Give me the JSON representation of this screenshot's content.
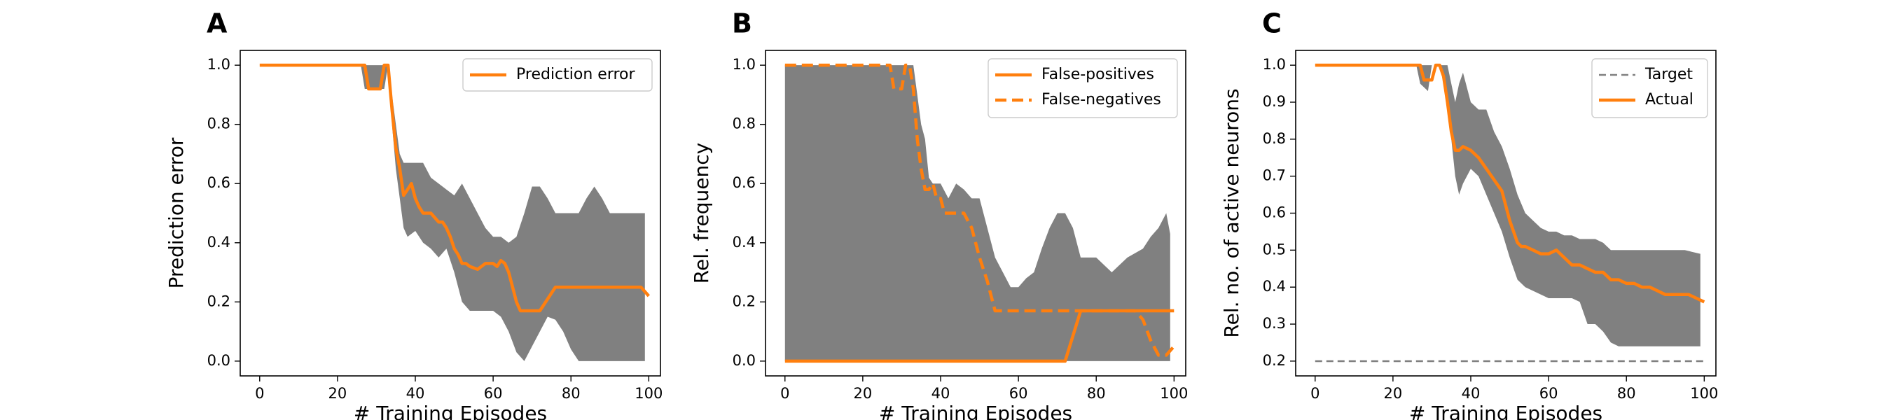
{
  "chart_data": [
    {
      "panel": "A",
      "type": "line",
      "xlabel": "# Training Episodes",
      "ylabel": "Prediction error",
      "xlim": [
        -5,
        103
      ],
      "ylim": [
        -0.05,
        1.05
      ],
      "xticks": [
        0,
        20,
        40,
        60,
        80,
        100
      ],
      "yticks": [
        0.0,
        0.2,
        0.4,
        0.6,
        0.8,
        1.0
      ],
      "ytick_labels": [
        "0.0",
        "0.2",
        "0.4",
        "0.6",
        "0.8",
        "1.0"
      ],
      "legend_position": "top-right",
      "band": {
        "x": [
          0,
          26,
          27,
          32,
          33,
          34,
          35,
          36,
          37,
          38,
          40,
          42,
          44,
          46,
          48,
          50,
          52,
          54,
          56,
          58,
          60,
          62,
          64,
          66,
          68,
          70,
          72,
          74,
          76,
          78,
          80,
          82,
          84,
          86,
          88,
          90,
          92,
          94,
          96,
          98,
          99
        ],
        "upper": [
          1.0,
          1.0,
          1.0,
          1.0,
          1.0,
          0.9,
          0.8,
          0.7,
          0.67,
          0.67,
          0.67,
          0.67,
          0.62,
          0.6,
          0.58,
          0.56,
          0.6,
          0.55,
          0.5,
          0.45,
          0.42,
          0.42,
          0.4,
          0.42,
          0.5,
          0.59,
          0.59,
          0.55,
          0.5,
          0.5,
          0.5,
          0.5,
          0.55,
          0.59,
          0.55,
          0.5,
          0.5,
          0.5,
          0.5,
          0.5,
          0.5
        ],
        "lower": [
          1.0,
          1.0,
          0.92,
          0.92,
          1.0,
          0.8,
          0.65,
          0.55,
          0.45,
          0.42,
          0.44,
          0.4,
          0.38,
          0.35,
          0.38,
          0.3,
          0.2,
          0.17,
          0.17,
          0.17,
          0.17,
          0.15,
          0.1,
          0.03,
          0.0,
          0.05,
          0.1,
          0.15,
          0.14,
          0.1,
          0.04,
          0.0,
          0.0,
          0.0,
          0.0,
          0.0,
          0.0,
          0.0,
          0.0,
          0.0,
          0.0
        ]
      },
      "series": [
        {
          "name": "Prediction error",
          "style": "solid",
          "x": [
            0,
            27,
            28,
            31,
            32,
            33,
            34,
            35,
            36,
            37,
            38,
            39,
            40,
            41,
            42,
            44,
            46,
            47,
            48,
            49,
            50,
            51,
            52,
            53,
            54,
            56,
            58,
            60,
            61,
            62,
            63,
            64,
            65,
            66,
            67,
            68,
            70,
            72,
            74,
            76,
            80,
            85,
            90,
            95,
            98,
            100
          ],
          "y": [
            1.0,
            1.0,
            0.92,
            0.92,
            1.0,
            1.0,
            0.85,
            0.72,
            0.65,
            0.56,
            0.58,
            0.6,
            0.55,
            0.52,
            0.5,
            0.5,
            0.47,
            0.47,
            0.45,
            0.42,
            0.38,
            0.36,
            0.33,
            0.33,
            0.32,
            0.31,
            0.33,
            0.33,
            0.32,
            0.34,
            0.33,
            0.3,
            0.25,
            0.2,
            0.17,
            0.17,
            0.17,
            0.17,
            0.21,
            0.25,
            0.25,
            0.25,
            0.25,
            0.25,
            0.25,
            0.22
          ]
        }
      ]
    },
    {
      "panel": "B",
      "type": "line",
      "xlabel": "# Training Episodes",
      "ylabel": "Rel. frequency",
      "xlim": [
        -5,
        103
      ],
      "ylim": [
        -0.05,
        1.05
      ],
      "xticks": [
        0,
        20,
        40,
        60,
        80,
        100
      ],
      "yticks": [
        0.0,
        0.2,
        0.4,
        0.6,
        0.8,
        1.0
      ],
      "ytick_labels": [
        "0.0",
        "0.2",
        "0.4",
        "0.6",
        "0.8",
        "1.0"
      ],
      "legend_position": "top-right",
      "band": {
        "x": [
          0,
          26,
          27,
          30,
          31,
          32,
          33,
          34,
          35,
          36,
          37,
          38,
          40,
          42,
          44,
          46,
          48,
          50,
          52,
          54,
          56,
          58,
          60,
          62,
          64,
          66,
          68,
          70,
          72,
          74,
          76,
          78,
          80,
          84,
          88,
          92,
          94,
          96,
          98,
          99
        ],
        "upper": [
          1.0,
          1.0,
          1.0,
          1.0,
          1.0,
          1.0,
          1.0,
          0.9,
          0.8,
          0.75,
          0.62,
          0.6,
          0.6,
          0.55,
          0.6,
          0.58,
          0.55,
          0.55,
          0.45,
          0.35,
          0.3,
          0.25,
          0.25,
          0.28,
          0.3,
          0.38,
          0.45,
          0.5,
          0.5,
          0.45,
          0.35,
          0.35,
          0.35,
          0.3,
          0.35,
          0.38,
          0.42,
          0.45,
          0.5,
          0.43
        ],
        "lower": [
          0.0,
          0.0,
          0.0,
          0.0,
          0.0,
          0.0,
          0.0,
          0.0,
          0.0,
          0.0,
          0.0,
          0.0,
          0.0,
          0.0,
          0.0,
          0.0,
          0.0,
          0.0,
          0.0,
          0.0,
          0.0,
          0.0,
          0.0,
          0.0,
          0.0,
          0.0,
          0.0,
          0.0,
          0.0,
          0.0,
          0.0,
          0.0,
          0.0,
          0.0,
          0.0,
          0.0,
          0.0,
          0.0,
          0.0,
          0.0
        ]
      },
      "series": [
        {
          "name": "False-positives",
          "style": "solid",
          "x": [
            0,
            72,
            76,
            100
          ],
          "y": [
            0.0,
            0.0,
            0.17,
            0.17
          ]
        },
        {
          "name": "False-negatives",
          "style": "dashed",
          "x": [
            0,
            27,
            28,
            30,
            31,
            32,
            33,
            34,
            35,
            36,
            37,
            38,
            39,
            40,
            41,
            42,
            44,
            46,
            48,
            50,
            52,
            53,
            54,
            55,
            56,
            58,
            60,
            70,
            80,
            90,
            92,
            94,
            96,
            98,
            100
          ],
          "y": [
            1.0,
            1.0,
            0.92,
            0.92,
            1.0,
            1.0,
            0.92,
            0.75,
            0.65,
            0.58,
            0.58,
            0.6,
            0.55,
            0.55,
            0.5,
            0.5,
            0.5,
            0.5,
            0.45,
            0.35,
            0.27,
            0.22,
            0.17,
            0.17,
            0.17,
            0.17,
            0.17,
            0.17,
            0.17,
            0.17,
            0.14,
            0.07,
            0.02,
            0.02,
            0.05
          ]
        }
      ]
    },
    {
      "panel": "C",
      "type": "line",
      "xlabel": "# Training Episodes",
      "ylabel": "Rel. no. of active neurons",
      "xlim": [
        -5,
        103
      ],
      "ylim": [
        0.16,
        1.04
      ],
      "xticks": [
        0,
        20,
        40,
        60,
        80,
        100
      ],
      "yticks": [
        0.2,
        0.3,
        0.4,
        0.5,
        0.6,
        0.7,
        0.8,
        0.9,
        1.0
      ],
      "ytick_labels": [
        "0.2",
        "0.3",
        "0.4",
        "0.5",
        "0.6",
        "0.7",
        "0.8",
        "0.9",
        "1.0"
      ],
      "legend_position": "top-right",
      "band": {
        "x": [
          0,
          26,
          27,
          29,
          30,
          32,
          33,
          34,
          35,
          36,
          37,
          38,
          40,
          42,
          44,
          46,
          48,
          50,
          52,
          54,
          56,
          58,
          60,
          62,
          64,
          66,
          68,
          70,
          72,
          74,
          76,
          78,
          80,
          85,
          90,
          95,
          99
        ],
        "upper": [
          1.0,
          1.0,
          1.0,
          1.0,
          1.0,
          1.0,
          1.0,
          1.0,
          0.95,
          0.9,
          0.95,
          0.98,
          0.9,
          0.88,
          0.88,
          0.82,
          0.78,
          0.72,
          0.65,
          0.6,
          0.58,
          0.56,
          0.55,
          0.55,
          0.54,
          0.54,
          0.53,
          0.53,
          0.53,
          0.52,
          0.5,
          0.5,
          0.5,
          0.5,
          0.5,
          0.5,
          0.49
        ],
        "lower": [
          1.0,
          1.0,
          0.95,
          0.93,
          1.0,
          1.0,
          0.95,
          0.9,
          0.8,
          0.7,
          0.65,
          0.68,
          0.72,
          0.7,
          0.65,
          0.6,
          0.55,
          0.48,
          0.42,
          0.4,
          0.39,
          0.38,
          0.37,
          0.37,
          0.37,
          0.37,
          0.36,
          0.3,
          0.3,
          0.28,
          0.25,
          0.24,
          0.24,
          0.24,
          0.24,
          0.24,
          0.24
        ]
      },
      "series": [
        {
          "name": "Target",
          "style": "dashed-gray",
          "x": [
            0,
            100
          ],
          "y": [
            0.2,
            0.2
          ]
        },
        {
          "name": "Actual",
          "style": "solid",
          "x": [
            0,
            27,
            28,
            30,
            31,
            32,
            33,
            34,
            35,
            36,
            37,
            38,
            40,
            42,
            44,
            46,
            48,
            50,
            52,
            53,
            54,
            56,
            58,
            60,
            62,
            63,
            64,
            66,
            68,
            70,
            72,
            74,
            76,
            78,
            80,
            82,
            84,
            86,
            88,
            90,
            92,
            94,
            96,
            98,
            100
          ],
          "y": [
            1.0,
            1.0,
            0.96,
            0.96,
            1.0,
            1.0,
            0.97,
            0.9,
            0.82,
            0.77,
            0.77,
            0.78,
            0.77,
            0.75,
            0.72,
            0.69,
            0.66,
            0.58,
            0.52,
            0.51,
            0.51,
            0.5,
            0.49,
            0.49,
            0.5,
            0.49,
            0.48,
            0.46,
            0.46,
            0.45,
            0.44,
            0.44,
            0.42,
            0.42,
            0.41,
            0.41,
            0.4,
            0.4,
            0.39,
            0.38,
            0.38,
            0.38,
            0.38,
            0.37,
            0.36
          ]
        }
      ]
    }
  ]
}
